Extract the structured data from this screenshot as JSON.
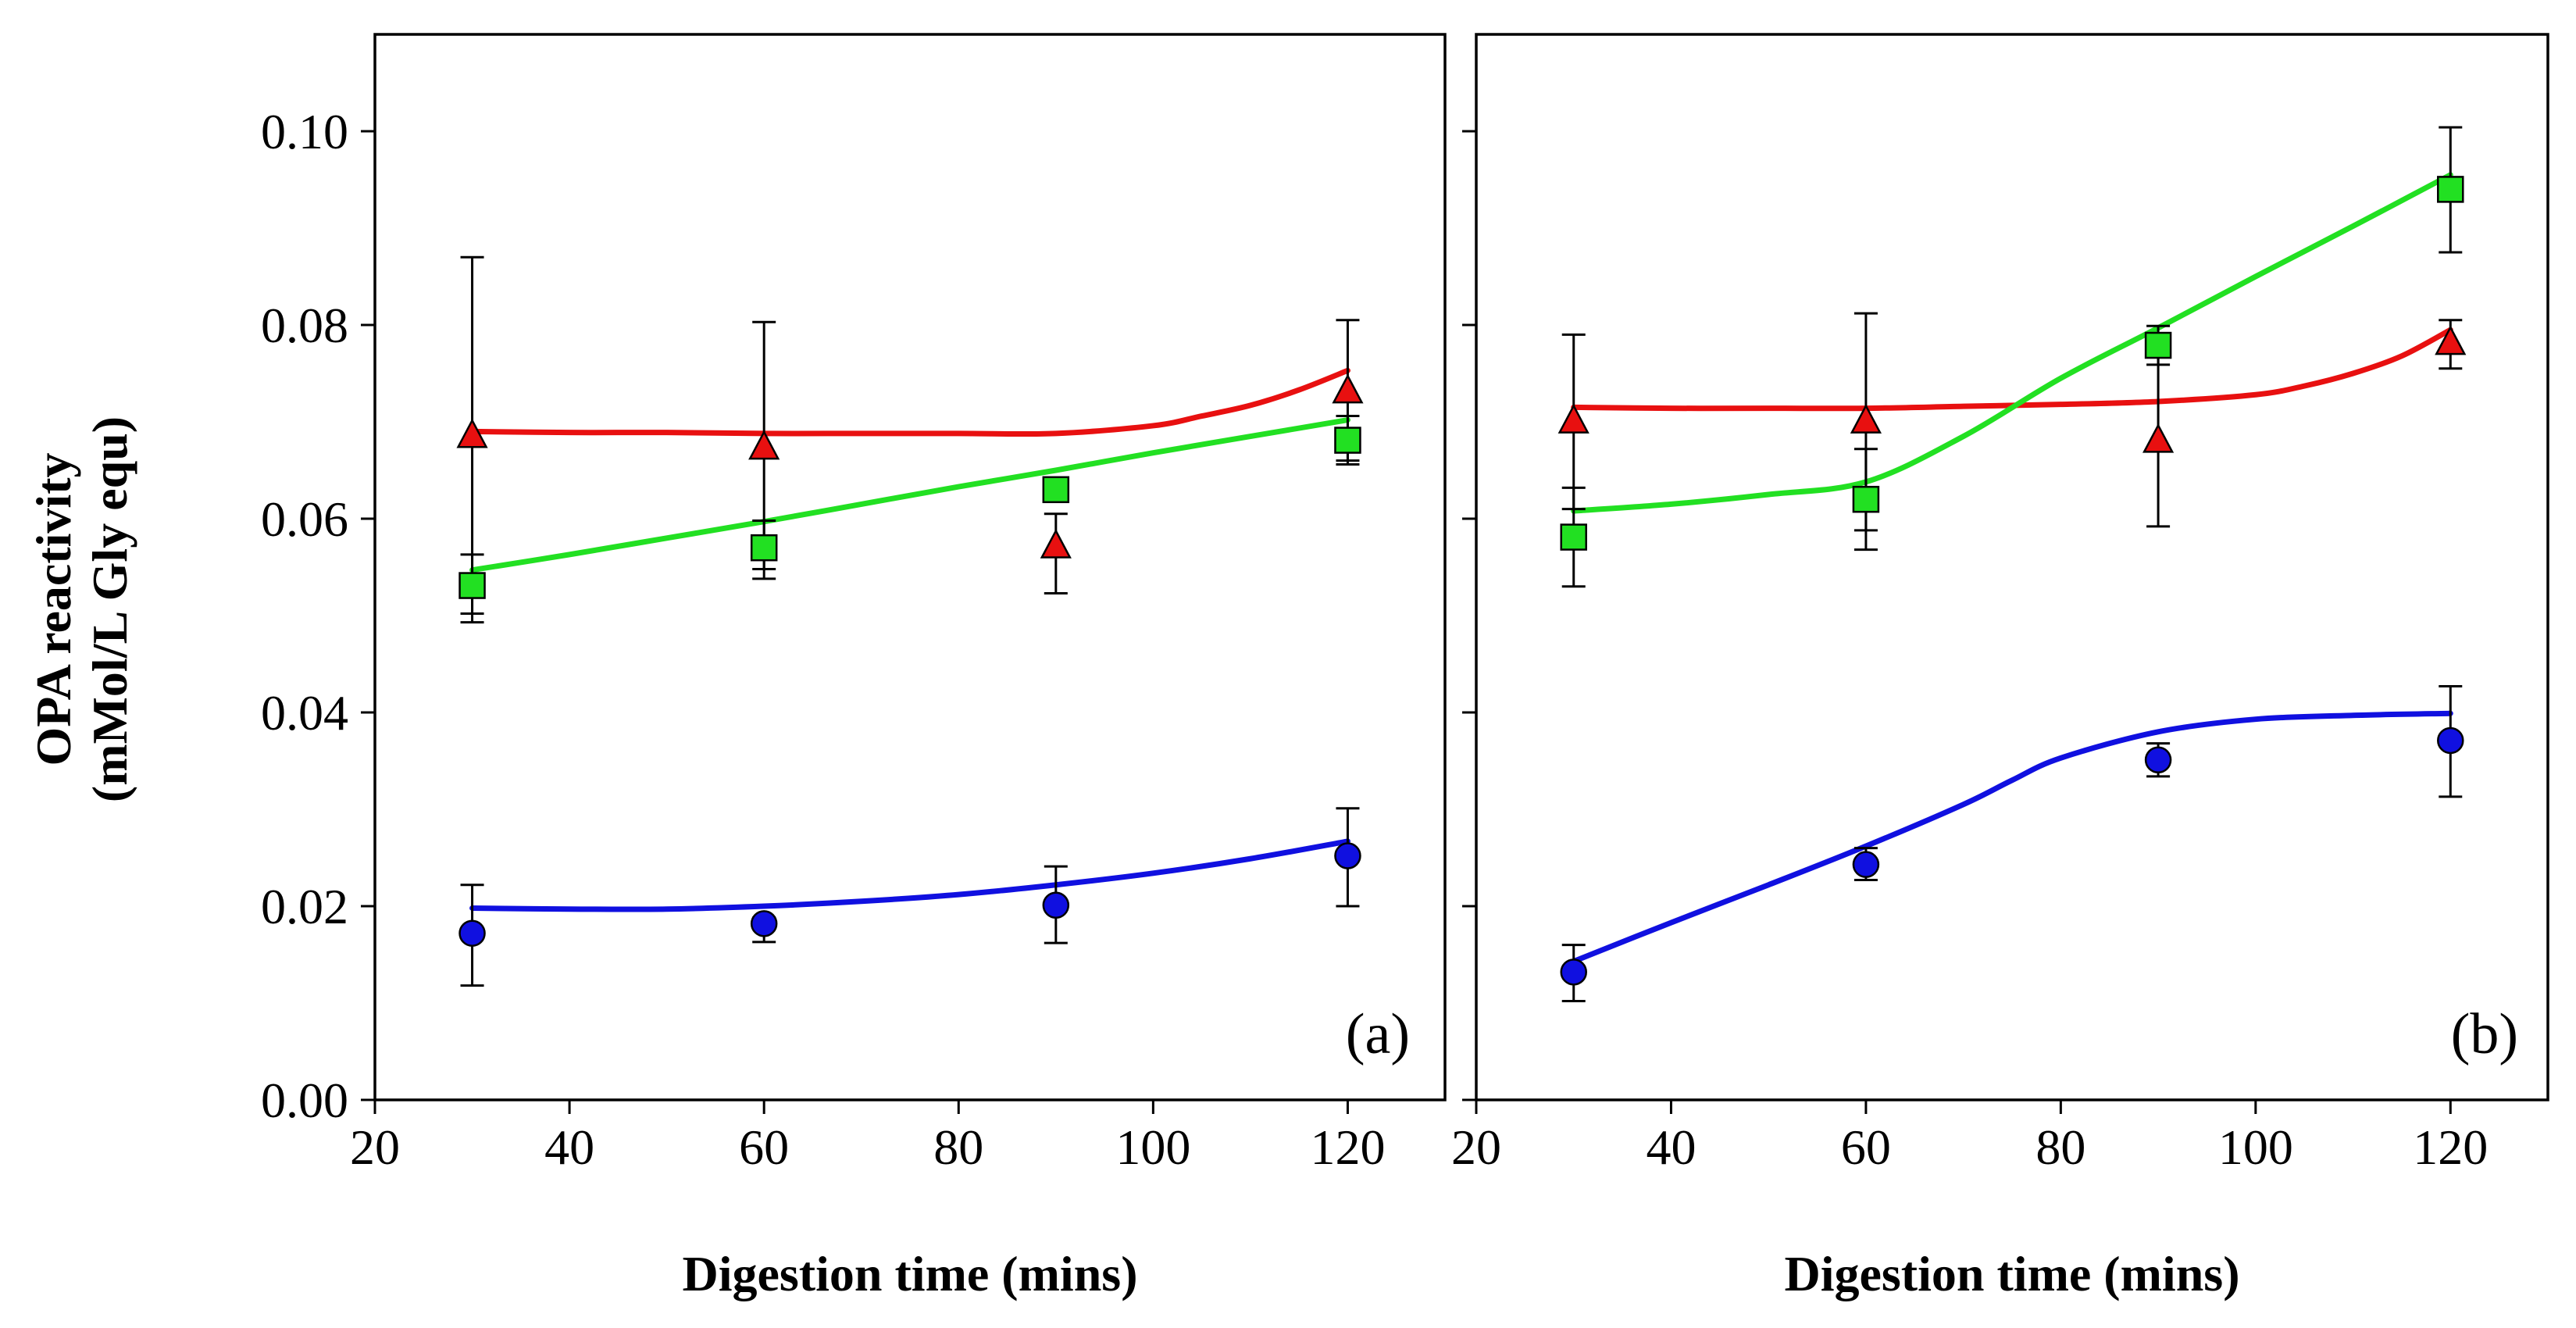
{
  "chart_data": [
    {
      "type": "scatter",
      "panel_label": "(a)",
      "xlabel": "Digestion time (mins)",
      "ylabel_line1": "OPA reactivity",
      "ylabel_line2": "(mMol/L Gly equ)",
      "xlim": [
        20,
        130
      ],
      "ylim": [
        0,
        0.11
      ],
      "x_ticks": [
        "20",
        "40",
        "60",
        "80",
        "100",
        "120"
      ],
      "y_ticks": [
        "0.00",
        "0.02",
        "0.04",
        "0.06",
        "0.08",
        "0.10"
      ],
      "series": [
        {
          "name": "blue-circles",
          "marker": "circle",
          "color": "#1010e0",
          "x": [
            30,
            60,
            90,
            120
          ],
          "y": [
            0.0172,
            0.0182,
            0.0201,
            0.0252
          ],
          "err_low": [
            0.0118,
            0.0163,
            0.0162,
            0.02
          ],
          "err_high": [
            0.0222,
            0.0188,
            0.0241,
            0.0301
          ],
          "fit_x": [
            30,
            40,
            50,
            60,
            70,
            80,
            90,
            100,
            110,
            120
          ],
          "fit_y": [
            0.0198,
            0.0197,
            0.0197,
            0.02,
            0.0205,
            0.0212,
            0.0222,
            0.0234,
            0.0249,
            0.0267
          ]
        },
        {
          "name": "red-triangles",
          "marker": "triangle",
          "color": "#e81010",
          "x": [
            30,
            60,
            90,
            120
          ],
          "y": [
            0.0685,
            0.0673,
            0.0571,
            0.0731
          ],
          "err_low": [
            0.0502,
            0.0548,
            0.0523,
            0.066
          ],
          "err_high": [
            0.087,
            0.0803,
            0.0605,
            0.0805
          ],
          "fit_x": [
            30,
            40,
            50,
            60,
            70,
            80,
            90,
            100,
            105,
            110,
            115,
            120
          ],
          "fit_y": [
            0.069,
            0.0689,
            0.0689,
            0.0688,
            0.0688,
            0.0688,
            0.0688,
            0.0696,
            0.0706,
            0.0717,
            0.0733,
            0.0753
          ]
        },
        {
          "name": "green-squares",
          "marker": "square",
          "color": "#22e022",
          "x": [
            30,
            60,
            90,
            120
          ],
          "y": [
            0.0531,
            0.057,
            0.063,
            0.0681
          ],
          "err_low": [
            0.0493,
            0.0538,
            0.062,
            0.0656
          ],
          "err_high": [
            0.0563,
            0.0598,
            0.0638,
            0.0706
          ],
          "fit_x": [
            30,
            40,
            50,
            60,
            70,
            80,
            90,
            100,
            110,
            120
          ],
          "fit_y": [
            0.0547,
            0.0563,
            0.058,
            0.0597,
            0.0615,
            0.0633,
            0.065,
            0.0668,
            0.0685,
            0.0702
          ]
        }
      ]
    },
    {
      "type": "scatter",
      "panel_label": "(b)",
      "xlabel": "Digestion time (mins)",
      "xlim": [
        20,
        130
      ],
      "ylim": [
        0,
        0.11
      ],
      "x_ticks": [
        "20",
        "40",
        "60",
        "80",
        "100",
        "120"
      ],
      "series": [
        {
          "name": "blue-circles",
          "marker": "circle",
          "color": "#1010e0",
          "x": [
            30,
            60,
            90,
            120
          ],
          "y": [
            0.0132,
            0.0243,
            0.0351,
            0.0371
          ],
          "err_low": [
            0.0102,
            0.0227,
            0.0334,
            0.0313
          ],
          "err_high": [
            0.016,
            0.026,
            0.0368,
            0.0427
          ],
          "fit_x": [
            30,
            40,
            50,
            60,
            70,
            75,
            80,
            90,
            100,
            110,
            120
          ],
          "fit_y": [
            0.0143,
            0.0183,
            0.0222,
            0.0262,
            0.0305,
            0.033,
            0.0353,
            0.038,
            0.0393,
            0.0397,
            0.0399
          ]
        },
        {
          "name": "red-triangles",
          "marker": "triangle",
          "color": "#e81010",
          "x": [
            30,
            60,
            90,
            120
          ],
          "y": [
            0.07,
            0.07,
            0.068,
            0.0781
          ],
          "err_low": [
            0.061,
            0.0588,
            0.0592,
            0.0755
          ],
          "err_high": [
            0.079,
            0.0812,
            0.077,
            0.0805
          ],
          "fit_x": [
            30,
            40,
            50,
            60,
            70,
            80,
            90,
            100,
            105,
            110,
            115,
            120
          ],
          "fit_y": [
            0.0715,
            0.0714,
            0.0714,
            0.0714,
            0.0716,
            0.0718,
            0.0721,
            0.0728,
            0.0737,
            0.075,
            0.0768,
            0.0795
          ]
        },
        {
          "name": "green-squares",
          "marker": "square",
          "color": "#22e022",
          "x": [
            30,
            60,
            90,
            120
          ],
          "y": [
            0.0581,
            0.062,
            0.0779,
            0.094
          ],
          "err_low": [
            0.053,
            0.0568,
            0.0759,
            0.0875
          ],
          "err_high": [
            0.0632,
            0.0672,
            0.0799,
            0.1004
          ],
          "fit_x": [
            30,
            40,
            50,
            60,
            70,
            80,
            90,
            100,
            110,
            120
          ],
          "fit_y": [
            0.0608,
            0.0615,
            0.0625,
            0.0638,
            0.0685,
            0.0745,
            0.0797,
            0.085,
            0.0902,
            0.0955
          ]
        }
      ]
    }
  ]
}
